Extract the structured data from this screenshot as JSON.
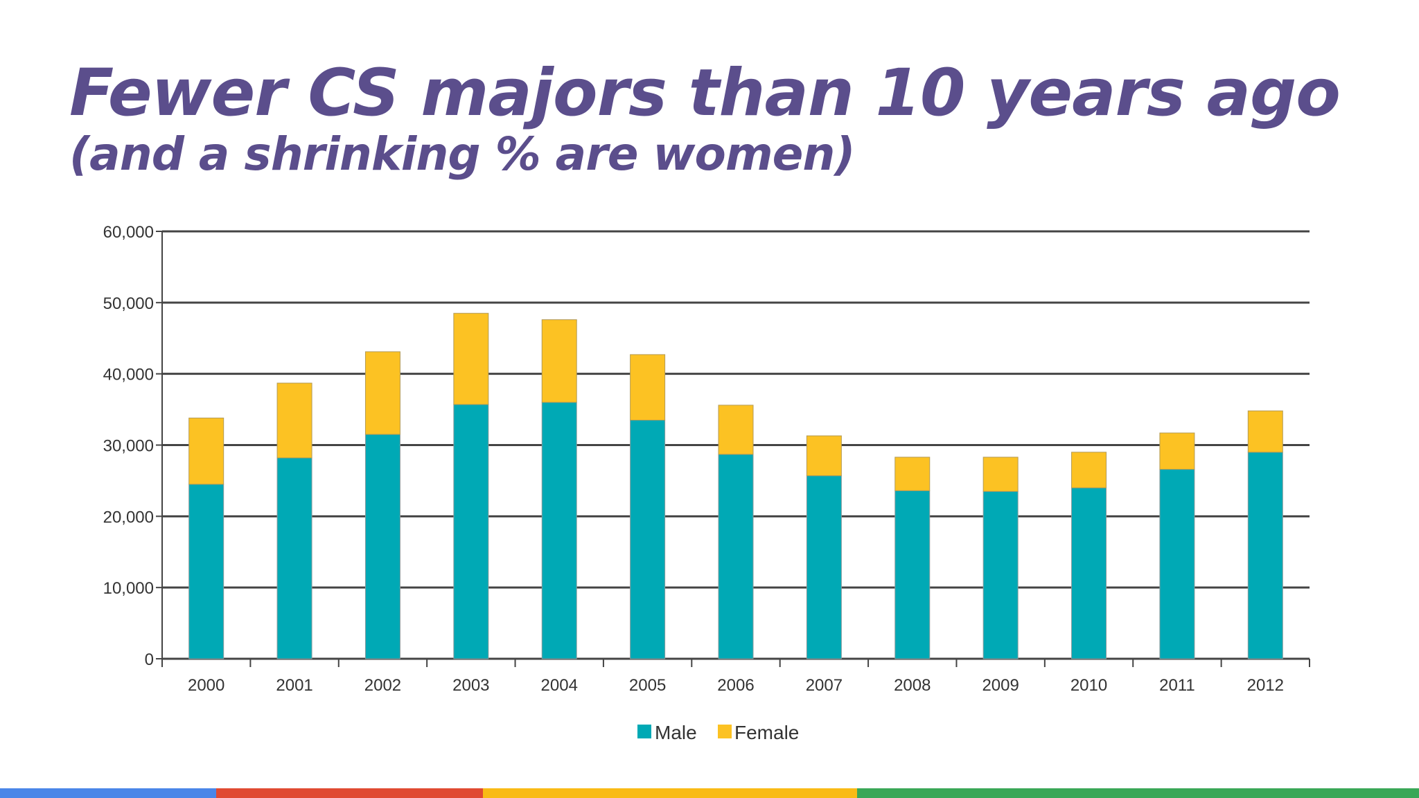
{
  "slide": {
    "title": "Fewer CS majors than 10 years ago",
    "subtitle": "(and a shrinking % are women)"
  },
  "colors": {
    "title": "#5b4e8c",
    "male": "#00a9b5",
    "female": "#fcc223",
    "grid": "#444444",
    "stripe": [
      "#4a86e8",
      "#e04a32",
      "#f9bb16",
      "#3aa757"
    ]
  },
  "chart_data": {
    "type": "bar",
    "stacked": true,
    "title": "",
    "xlabel": "",
    "ylabel": "",
    "categories": [
      "2000",
      "2001",
      "2002",
      "2003",
      "2004",
      "2005",
      "2006",
      "2007",
      "2008",
      "2009",
      "2010",
      "2011",
      "2012"
    ],
    "series": [
      {
        "name": "Male",
        "values": [
          24500,
          28200,
          31500,
          35700,
          36000,
          33500,
          28700,
          25700,
          23600,
          23500,
          24000,
          26600,
          29000
        ]
      },
      {
        "name": "Female",
        "values": [
          9300,
          10500,
          11600,
          12800,
          11600,
          9200,
          6900,
          5600,
          4700,
          4800,
          5000,
          5100,
          5800
        ]
      }
    ],
    "ylim": [
      0,
      60000
    ],
    "yticks": [
      0,
      10000,
      20000,
      30000,
      40000,
      50000,
      60000
    ],
    "ytick_labels": [
      "0",
      "10,000",
      "20,000",
      "30,000",
      "40,000",
      "50,000",
      "60,000"
    ],
    "grid": true,
    "legend": {
      "position": "bottom-center",
      "entries": [
        "Male",
        "Female"
      ]
    }
  }
}
